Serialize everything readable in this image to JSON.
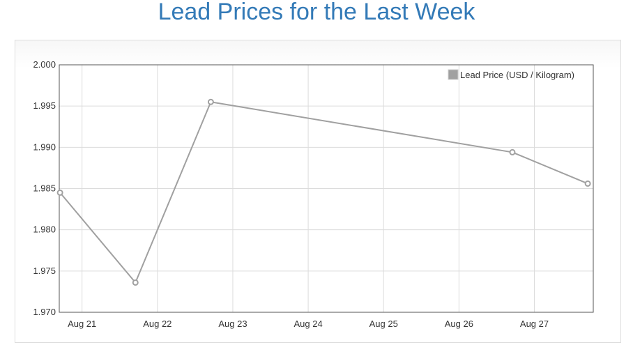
{
  "page": {
    "title": "Lead Prices for the Last Week"
  },
  "colors": {
    "title": "#337ab7",
    "series": "#a0a0a0",
    "grid": "#dcdcdc",
    "axis": "#555555"
  },
  "chart_data": {
    "type": "line",
    "title": "",
    "xlabel": "",
    "ylabel": "",
    "x_ticks": [
      "Aug 21",
      "Aug 22",
      "Aug 23",
      "Aug 24",
      "Aug 25",
      "Aug 26",
      "Aug 27"
    ],
    "x_tick_positions": [
      "2023-08-21",
      "2023-08-22",
      "2023-08-23",
      "2023-08-24",
      "2023-08-25",
      "2023-08-26",
      "2023-08-27"
    ],
    "x_range": [
      "2023-08-20 16:45",
      "2023-08-27 18:45"
    ],
    "y_ticks": [
      "1.970",
      "1.975",
      "1.980",
      "1.985",
      "1.990",
      "1.995",
      "2.000"
    ],
    "ylim": [
      1.97,
      2.0
    ],
    "grid": true,
    "legend_position": "top-right",
    "series": [
      {
        "name": "Lead Price (USD / Kilogram)",
        "color": "#a0a0a0",
        "points": [
          {
            "x": "2023-08-20 17:00",
            "y": 1.9845
          },
          {
            "x": "2023-08-21 17:00",
            "y": 1.9736
          },
          {
            "x": "2023-08-22 17:00",
            "y": 1.9955
          },
          {
            "x": "2023-08-26 17:00",
            "y": 1.9894
          },
          {
            "x": "2023-08-27 17:00",
            "y": 1.9856
          }
        ]
      }
    ]
  }
}
